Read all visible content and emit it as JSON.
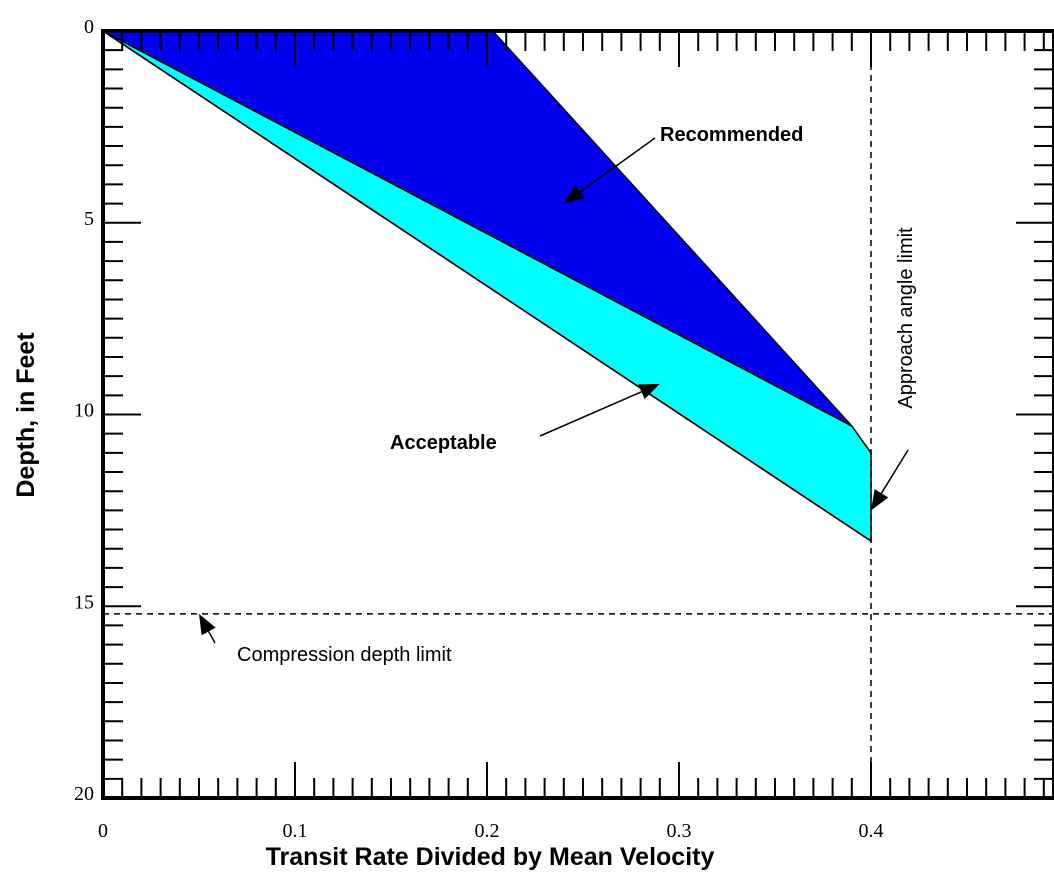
{
  "chart_data": {
    "type": "area",
    "xlabel": "Transit Rate Divided by Mean Velocity",
    "ylabel": "Depth, in Feet",
    "xlim": [
      0,
      0.5
    ],
    "ylim": [
      0,
      20
    ],
    "y_inverted": true,
    "x_ticks": [
      0,
      0.1,
      0.2,
      0.3,
      0.4
    ],
    "x_tick_labels": [
      "0",
      "0.1",
      "0.2",
      "0.3",
      "0.4"
    ],
    "y_ticks": [
      0,
      5,
      10,
      15,
      20
    ],
    "y_tick_labels": [
      "0",
      "5",
      "10",
      "15",
      "20"
    ],
    "grid": false,
    "regions": [
      {
        "label": "Acceptable",
        "color": "#00FFFF",
        "polygon": [
          [
            0,
            0
          ],
          [
            0.39,
            10.3
          ],
          [
            0.4,
            11.0
          ],
          [
            0.4,
            13.3
          ],
          [
            0,
            0
          ]
        ]
      },
      {
        "label": "Recommended",
        "color": "#0000EE",
        "polygon": [
          [
            0,
            0
          ],
          [
            0.203,
            0
          ],
          [
            0.39,
            10.3
          ],
          [
            0,
            0
          ]
        ]
      }
    ],
    "boundary_lines": [
      {
        "x": [
          0,
          0.39
        ],
        "y": [
          0,
          10.3
        ]
      },
      {
        "x": [
          0,
          0.4
        ],
        "y": [
          0,
          13.3
        ]
      }
    ],
    "reference_lines": [
      {
        "orientation": "horizontal",
        "value": 15.2,
        "style": "dashed",
        "label": "Compression depth limit"
      },
      {
        "orientation": "vertical",
        "value": 0.4,
        "style": "dashed",
        "label": "Approach angle limit"
      }
    ],
    "annotations": [
      {
        "text": "Recommended",
        "target": [
          0.24,
          4.5
        ]
      },
      {
        "text": "Acceptable",
        "target": [
          0.29,
          9.2
        ]
      },
      {
        "text": "Compression depth limit",
        "target": [
          0.05,
          15.2
        ]
      },
      {
        "text": "Approach angle limit",
        "target": [
          0.4,
          12.5
        ]
      }
    ]
  }
}
